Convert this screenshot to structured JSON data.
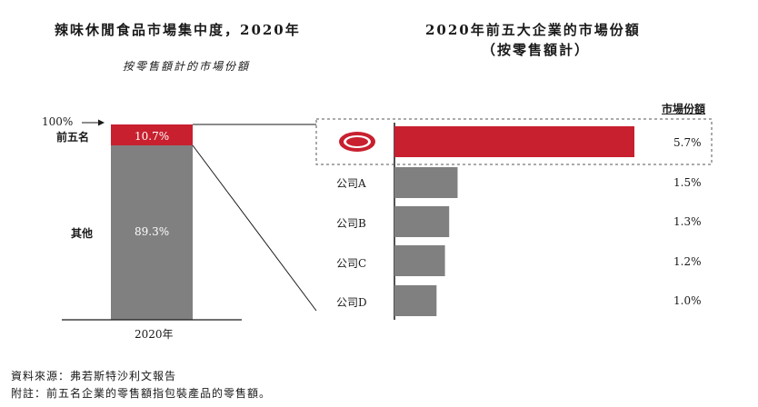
{
  "colors": {
    "highlight": "#c8202f",
    "bar": "#808080",
    "text": "#1a1a1a"
  },
  "left": {
    "title": "辣味休閒食品市場集中度，2020年",
    "subtitle": "按零售額計的市場份額"
  },
  "right": {
    "title_line1": "2020年前五大企業的市場份額",
    "title_line2": "（按零售額計）",
    "column_header": "市場份額"
  },
  "footnotes": {
    "source": "資料來源：弗若斯特沙利文報告",
    "note": "附註：前五名企業的零售額指包裝產品的零售額。"
  },
  "logo_icon": "weilong-logo-icon",
  "chart_data": [
    {
      "type": "bar",
      "stacked": true,
      "title": "辣味休閒食品市場集中度，2020年",
      "subtitle": "按零售額計的市場份額",
      "categories": [
        "2020年"
      ],
      "series": [
        {
          "name": "前五名",
          "values": [
            10.7
          ],
          "label": "10.7%",
          "color": "#c8202f"
        },
        {
          "name": "其他",
          "values": [
            89.3
          ],
          "label": "89.3%",
          "color": "#808080"
        }
      ],
      "axis_marker": "100%",
      "ylim": [
        0,
        100
      ]
    },
    {
      "type": "bar",
      "orientation": "horizontal",
      "title": "2020年前五大企業的市場份額（按零售額計）",
      "column_header": "市場份額",
      "categories": [
        "logo",
        "公司A",
        "公司B",
        "公司C",
        "公司D"
      ],
      "values": [
        5.7,
        1.5,
        1.3,
        1.2,
        1.0
      ],
      "labels": [
        "5.7%",
        "1.5%",
        "1.3%",
        "1.2%",
        "1.0%"
      ],
      "colors": [
        "#c8202f",
        "#808080",
        "#808080",
        "#808080",
        "#808080"
      ],
      "xlim": [
        0,
        6.2
      ]
    }
  ]
}
